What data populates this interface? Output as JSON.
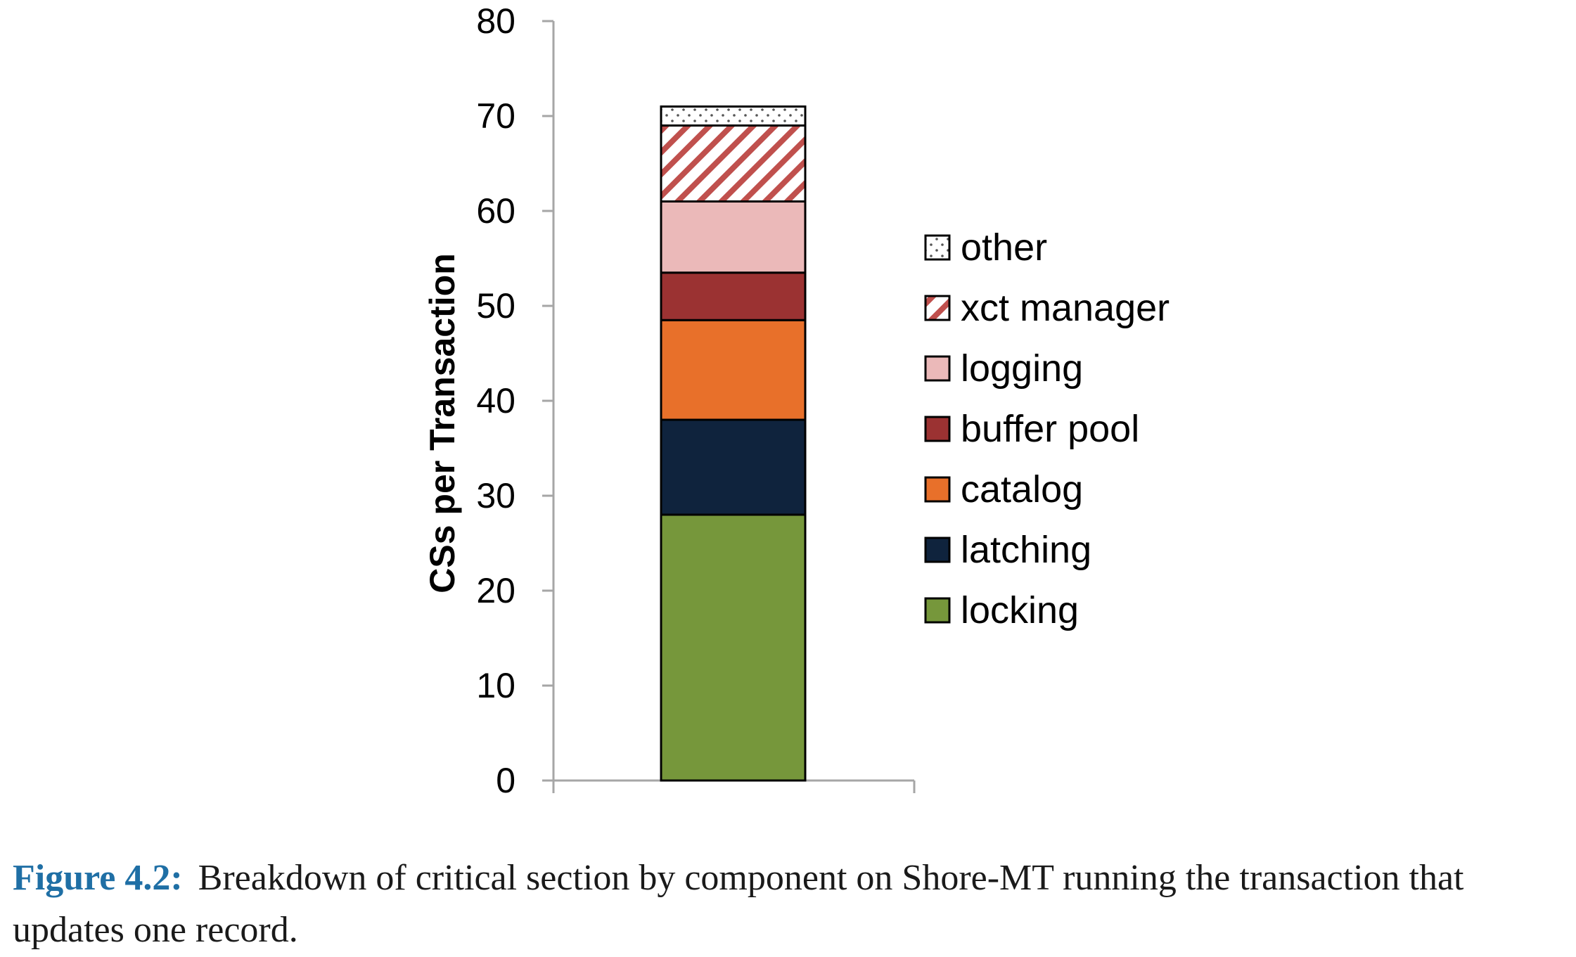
{
  "chart_data": {
    "type": "bar",
    "stacked": true,
    "categories": [
      ""
    ],
    "ylabel": "CSs per Transaction",
    "xlabel": "",
    "ylim": [
      0,
      80
    ],
    "yticks": [
      0,
      10,
      20,
      30,
      40,
      50,
      60,
      70,
      80
    ],
    "grid": false,
    "legend_position": "right",
    "series": [
      {
        "name": "locking",
        "values": [
          28
        ],
        "color": "#76973b",
        "pattern": "solid"
      },
      {
        "name": "latching",
        "values": [
          10
        ],
        "color": "#0f233d",
        "pattern": "solid"
      },
      {
        "name": "catalog",
        "values": [
          10.5
        ],
        "color": "#e8702a",
        "pattern": "solid"
      },
      {
        "name": "buffer pool",
        "values": [
          5
        ],
        "color": "#9b3232",
        "pattern": "solid"
      },
      {
        "name": "logging",
        "values": [
          7.5
        ],
        "color": "#ebb9b9",
        "pattern": "solid"
      },
      {
        "name": "xct manager",
        "values": [
          8
        ],
        "color": "#c0504d",
        "pattern": "diagonal"
      },
      {
        "name": "other",
        "values": [
          2
        ],
        "color": "#ffffff",
        "pattern": "dots"
      }
    ]
  },
  "caption": {
    "label": "Figure 4.2:",
    "text": "Breakdown of critical section by component on Shore-MT running the transaction that updates one record."
  }
}
